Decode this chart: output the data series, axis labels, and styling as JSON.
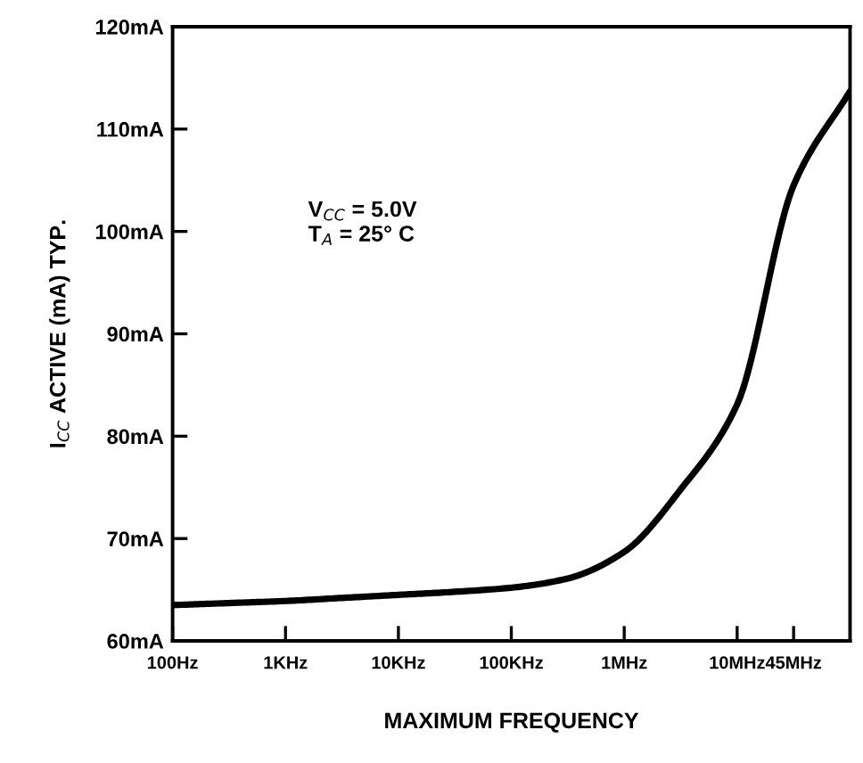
{
  "chart_data": {
    "type": "line",
    "xlabel": "MAXIMUM FREQUENCY",
    "ylabel": "I$_{CC}$ ACTIVE (mA) TYP.",
    "annotations": [
      "V$_{CC}$ = 5.0V",
      "T$_{A}$ = 25° C"
    ],
    "grid": false,
    "marker": "none",
    "line_style": "solid",
    "categories": [
      "100Hz",
      null,
      "1KHz",
      null,
      "10KHz",
      null,
      "100KHz",
      null,
      "1MHz",
      null,
      "10MHz",
      "45MHz",
      null
    ],
    "ylim": [
      60,
      120
    ],
    "yticks": [
      {
        "value": 60,
        "label": "60mA"
      },
      {
        "value": 70,
        "label": "70mA"
      },
      {
        "value": 80,
        "label": "80mA"
      },
      {
        "value": 90,
        "label": "90mA"
      },
      {
        "value": 100,
        "label": "100mA"
      },
      {
        "value": 110,
        "label": "110mA"
      },
      {
        "value": 120,
        "label": "120mA"
      }
    ],
    "series": [
      {
        "color": "#000000",
        "values": [
          63.5,
          63.7,
          63.9,
          64.2,
          64.5,
          64.8,
          65.2,
          66.1,
          68.7,
          74.8,
          83.1,
          104.5,
          113.7
        ]
      }
    ]
  }
}
